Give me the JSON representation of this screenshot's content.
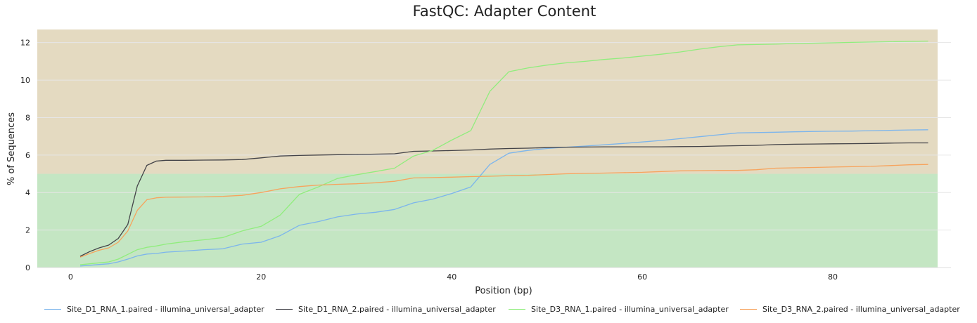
{
  "chart_data": {
    "type": "line",
    "title": "FastQC: Adapter Content",
    "xlabel": "Position (bp)",
    "ylabel": "% of Sequences",
    "xlim": [
      -3.5,
      91
    ],
    "ylim": [
      0,
      12.7
    ],
    "xticks": [
      0,
      20,
      40,
      60,
      80
    ],
    "yticks": [
      0,
      2,
      4,
      6,
      8,
      10,
      12
    ],
    "grid": "horizontal",
    "legend_position": "bottom",
    "bands": [
      {
        "from": 0,
        "to": 5,
        "color": "#c4e6c3"
      },
      {
        "from": 5,
        "to": 12.7,
        "color": "#e4dac1"
      }
    ],
    "series": [
      {
        "name": "Site_D1_RNA_1.paired - illumina_universal_adapter",
        "color": "#7cb5ec",
        "x": [
          1,
          2,
          3,
          4,
          5,
          6,
          7,
          8,
          9,
          10,
          12,
          14,
          16,
          18,
          20,
          22,
          24,
          26,
          28,
          30,
          32,
          34,
          36,
          38,
          40,
          42,
          44,
          46,
          48,
          50,
          52,
          54,
          56,
          58,
          60,
          62,
          64,
          66,
          68,
          70,
          72,
          74,
          76,
          78,
          80,
          82,
          84,
          86,
          88,
          90
        ],
        "values": [
          0.08,
          0.12,
          0.16,
          0.2,
          0.3,
          0.45,
          0.62,
          0.72,
          0.75,
          0.82,
          0.88,
          0.95,
          1.0,
          1.25,
          1.35,
          1.7,
          2.25,
          2.45,
          2.7,
          2.85,
          2.95,
          3.1,
          3.45,
          3.65,
          3.95,
          4.3,
          5.5,
          6.1,
          6.25,
          6.35,
          6.42,
          6.48,
          6.55,
          6.62,
          6.7,
          6.78,
          6.88,
          6.98,
          7.08,
          7.18,
          7.2,
          7.22,
          7.24,
          7.26,
          7.27,
          7.28,
          7.3,
          7.32,
          7.34,
          7.35
        ]
      },
      {
        "name": "Site_D1_RNA_2.paired - illumina_universal_adapter",
        "color": "#434348",
        "x": [
          1,
          2,
          3,
          4,
          5,
          6,
          7,
          8,
          9,
          10,
          12,
          14,
          16,
          18,
          20,
          22,
          24,
          26,
          28,
          30,
          32,
          34,
          36,
          38,
          40,
          42,
          44,
          46,
          48,
          50,
          52,
          54,
          56,
          58,
          60,
          62,
          64,
          66,
          68,
          70,
          72,
          74,
          76,
          78,
          80,
          82,
          84,
          86,
          88,
          90
        ],
        "values": [
          0.6,
          0.85,
          1.05,
          1.2,
          1.55,
          2.3,
          4.35,
          5.45,
          5.68,
          5.72,
          5.72,
          5.73,
          5.74,
          5.76,
          5.85,
          5.95,
          5.98,
          6.0,
          6.02,
          6.03,
          6.05,
          6.07,
          6.2,
          6.22,
          6.24,
          6.27,
          6.32,
          6.35,
          6.37,
          6.4,
          6.42,
          6.43,
          6.44,
          6.44,
          6.44,
          6.44,
          6.45,
          6.46,
          6.48,
          6.5,
          6.52,
          6.56,
          6.58,
          6.59,
          6.6,
          6.61,
          6.62,
          6.64,
          6.65,
          6.65
        ]
      },
      {
        "name": "Site_D3_RNA_1.paired - illumina_universal_adapter",
        "color": "#90ed7d",
        "x": [
          1,
          2,
          3,
          4,
          5,
          6,
          7,
          8,
          9,
          10,
          12,
          14,
          16,
          18,
          20,
          22,
          24,
          26,
          28,
          30,
          32,
          34,
          36,
          38,
          40,
          42,
          44,
          46,
          48,
          50,
          52,
          54,
          56,
          58,
          60,
          62,
          64,
          66,
          68,
          70,
          72,
          74,
          76,
          78,
          80,
          82,
          84,
          86,
          88,
          90
        ],
        "values": [
          0.15,
          0.2,
          0.25,
          0.3,
          0.45,
          0.7,
          0.95,
          1.08,
          1.15,
          1.25,
          1.38,
          1.48,
          1.6,
          1.95,
          2.2,
          2.8,
          3.9,
          4.3,
          4.75,
          4.95,
          5.12,
          5.3,
          5.95,
          6.25,
          6.8,
          7.3,
          9.4,
          10.45,
          10.65,
          10.8,
          10.92,
          11.0,
          11.1,
          11.18,
          11.28,
          11.38,
          11.5,
          11.65,
          11.78,
          11.88,
          11.9,
          11.92,
          11.95,
          11.97,
          11.99,
          12.01,
          12.03,
          12.05,
          12.07,
          12.08
        ]
      },
      {
        "name": "Site_D3_RNA_2.paired - illumina_universal_adapter",
        "color": "#f7a35c",
        "x": [
          1,
          2,
          3,
          4,
          5,
          6,
          7,
          8,
          9,
          10,
          12,
          14,
          16,
          18,
          20,
          22,
          24,
          26,
          28,
          30,
          32,
          34,
          36,
          38,
          40,
          42,
          44,
          46,
          48,
          50,
          52,
          54,
          56,
          58,
          60,
          62,
          64,
          66,
          68,
          70,
          72,
          74,
          76,
          78,
          80,
          82,
          84,
          86,
          88,
          90
        ],
        "values": [
          0.55,
          0.75,
          0.92,
          1.05,
          1.35,
          1.95,
          3.05,
          3.62,
          3.72,
          3.75,
          3.76,
          3.77,
          3.8,
          3.85,
          4.0,
          4.2,
          4.32,
          4.4,
          4.44,
          4.47,
          4.52,
          4.6,
          4.78,
          4.8,
          4.82,
          4.85,
          4.87,
          4.9,
          4.92,
          4.96,
          5.0,
          5.02,
          5.04,
          5.06,
          5.08,
          5.12,
          5.16,
          5.17,
          5.18,
          5.18,
          5.22,
          5.3,
          5.32,
          5.34,
          5.36,
          5.38,
          5.4,
          5.44,
          5.48,
          5.5
        ]
      }
    ]
  }
}
